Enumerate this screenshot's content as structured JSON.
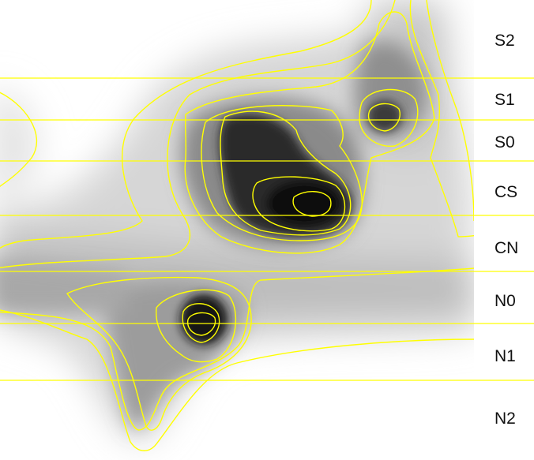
{
  "figure": {
    "kind": "density map with contour overlay",
    "colormap": "grayscale (white = low, black = high)",
    "contour_color": "#ffff00",
    "band_line_color": "#ffff00",
    "background": "#ffffff"
  },
  "bands": [
    {
      "label": "S2"
    },
    {
      "label": "S1"
    },
    {
      "label": "S0"
    },
    {
      "label": "CS"
    },
    {
      "label": "CN"
    },
    {
      "label": "N0"
    },
    {
      "label": "N1"
    },
    {
      "label": "N2"
    }
  ]
}
